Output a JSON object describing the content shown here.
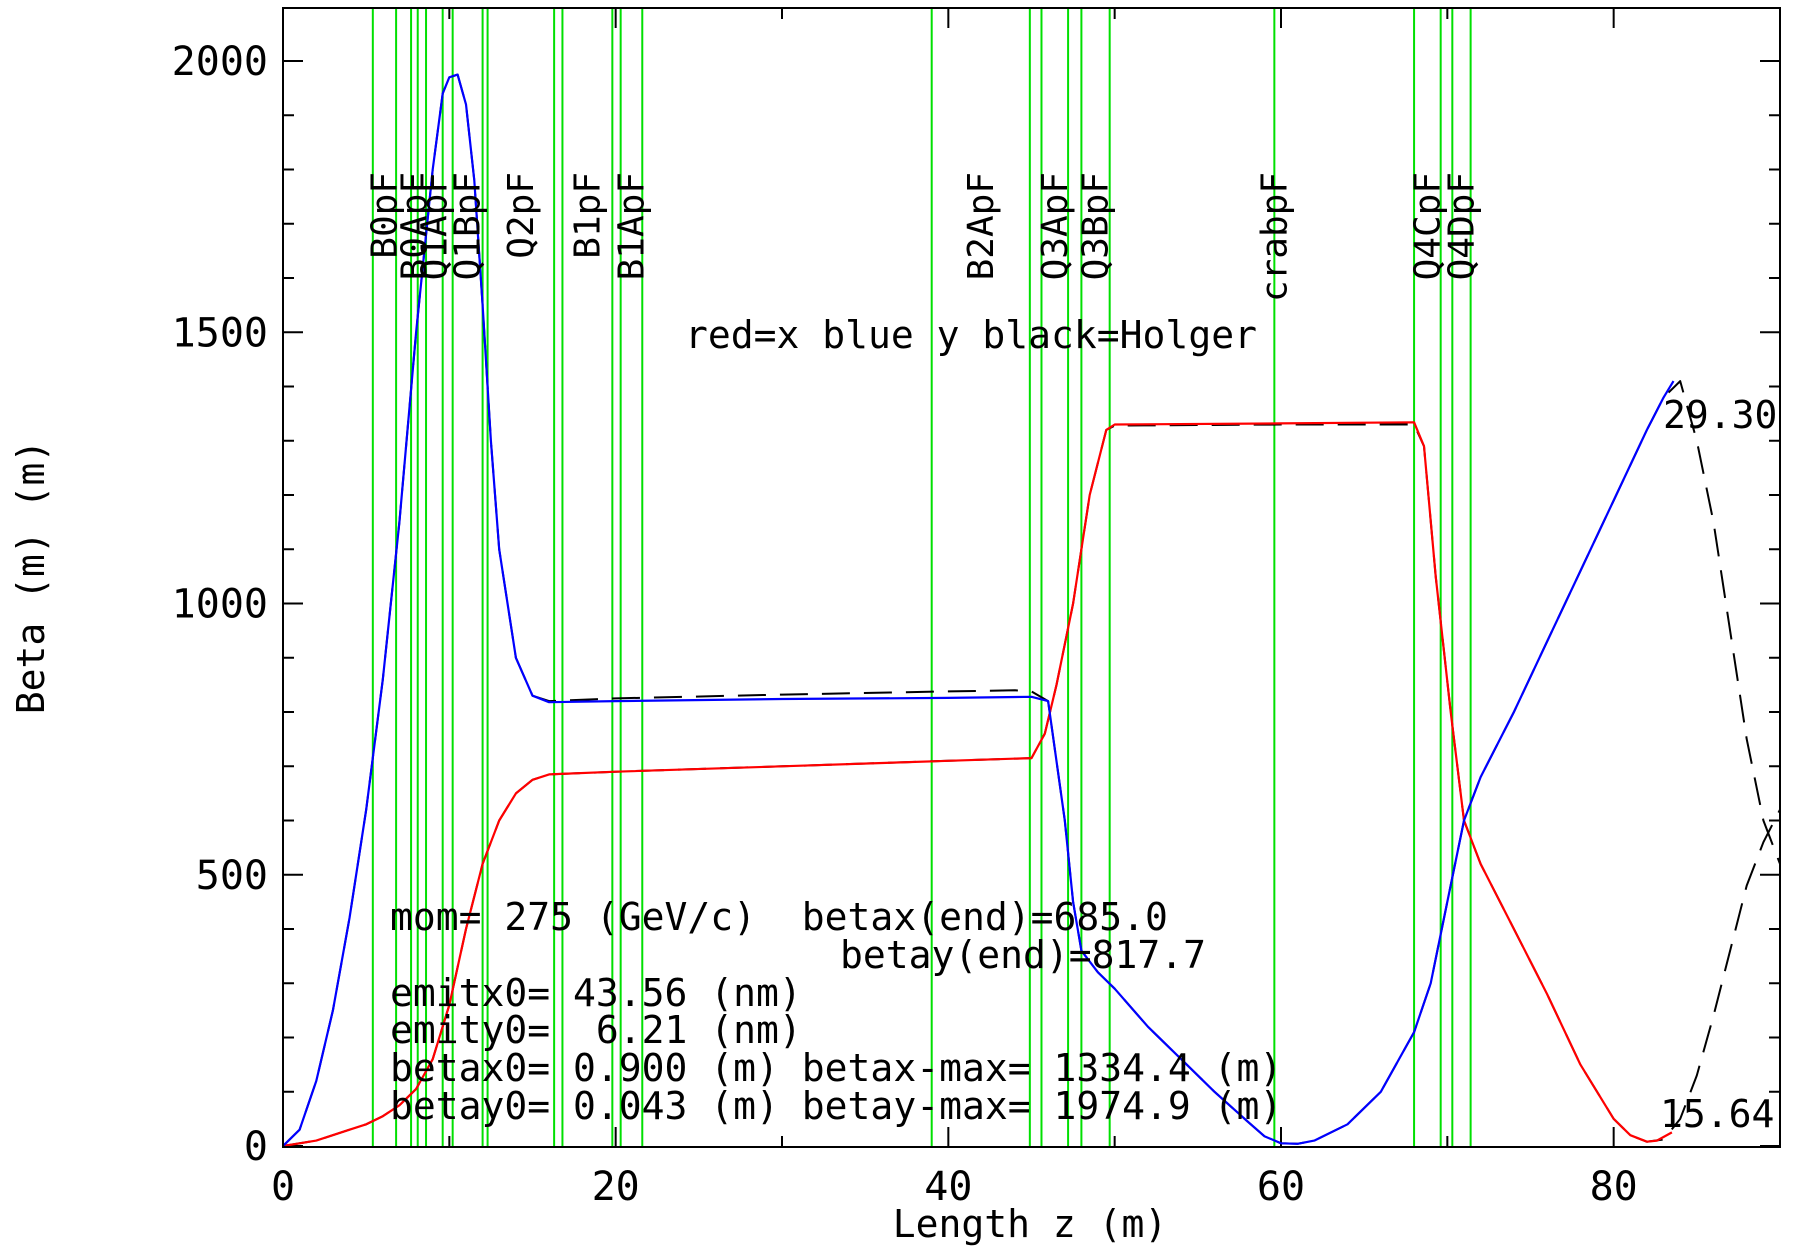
{
  "chart_data": {
    "type": "line",
    "xlabel": "Length z  (m)",
    "ylabel": "Beta (m)  (m)",
    "xlim": [
      0,
      90
    ],
    "ylim": [
      0,
      2100
    ],
    "x_ticks": [
      0,
      20,
      40,
      60,
      80
    ],
    "y_ticks": [
      0,
      500,
      1000,
      1500,
      2000
    ],
    "grid": false,
    "legend_note": "red=x blue y black=Holger",
    "series": [
      {
        "key": "betax",
        "color": "#ff0000",
        "style": "solid",
        "points": [
          [
            0,
            0
          ],
          [
            2,
            10
          ],
          [
            4,
            30
          ],
          [
            5,
            40
          ],
          [
            6,
            55
          ],
          [
            7,
            75
          ],
          [
            8,
            105
          ],
          [
            9,
            160
          ],
          [
            10,
            260
          ],
          [
            11,
            400
          ],
          [
            12,
            520
          ],
          [
            13,
            600
          ],
          [
            14,
            650
          ],
          [
            15,
            675
          ],
          [
            16,
            685
          ],
          [
            20,
            690
          ],
          [
            30,
            700
          ],
          [
            40,
            710
          ],
          [
            45,
            715
          ],
          [
            45.8,
            760
          ],
          [
            46.5,
            850
          ],
          [
            47.5,
            1000
          ],
          [
            48.5,
            1200
          ],
          [
            49.5,
            1320
          ],
          [
            50,
            1330
          ],
          [
            60,
            1332
          ],
          [
            68,
            1334
          ],
          [
            68.6,
            1290
          ],
          [
            69.3,
            1050
          ],
          [
            70.2,
            800
          ],
          [
            71,
            600
          ],
          [
            72,
            520
          ],
          [
            74,
            400
          ],
          [
            76,
            280
          ],
          [
            78,
            150
          ],
          [
            80,
            50
          ],
          [
            81,
            20
          ],
          [
            82,
            8
          ],
          [
            82.6,
            10
          ],
          [
            83.5,
            25
          ]
        ]
      },
      {
        "key": "betay",
        "color": "#0000ff",
        "style": "solid",
        "points": [
          [
            0,
            0
          ],
          [
            1,
            30
          ],
          [
            2,
            120
          ],
          [
            3,
            250
          ],
          [
            4,
            420
          ],
          [
            5,
            620
          ],
          [
            6,
            860
          ],
          [
            7,
            1150
          ],
          [
            8,
            1500
          ],
          [
            9,
            1800
          ],
          [
            9.6,
            1940
          ],
          [
            10,
            1970
          ],
          [
            10.5,
            1975
          ],
          [
            11,
            1920
          ],
          [
            11.5,
            1780
          ],
          [
            12,
            1550
          ],
          [
            12.5,
            1300
          ],
          [
            13,
            1100
          ],
          [
            14,
            900
          ],
          [
            15,
            830
          ],
          [
            16,
            818
          ],
          [
            20,
            820
          ],
          [
            30,
            824
          ],
          [
            40,
            826
          ],
          [
            45,
            828
          ],
          [
            46,
            820
          ],
          [
            47,
            600
          ],
          [
            47.5,
            450
          ],
          [
            48,
            360
          ],
          [
            49,
            320
          ],
          [
            50,
            290
          ],
          [
            52,
            220
          ],
          [
            54,
            160
          ],
          [
            56,
            100
          ],
          [
            58,
            45
          ],
          [
            59,
            18
          ],
          [
            60,
            5
          ],
          [
            61,
            4
          ],
          [
            62,
            10
          ],
          [
            64,
            40
          ],
          [
            66,
            100
          ],
          [
            68,
            210
          ],
          [
            69,
            300
          ],
          [
            70,
            450
          ],
          [
            71,
            600
          ],
          [
            72,
            680
          ],
          [
            74,
            800
          ],
          [
            76,
            930
          ],
          [
            78,
            1060
          ],
          [
            80,
            1190
          ],
          [
            82,
            1320
          ],
          [
            83,
            1380
          ],
          [
            83.6,
            1410
          ]
        ]
      },
      {
        "key": "holger_x",
        "color": "#000000",
        "style": "dashed",
        "points": [
          [
            0,
            0
          ],
          [
            2,
            10
          ],
          [
            4,
            30
          ],
          [
            5,
            40
          ],
          [
            6,
            55
          ],
          [
            7,
            75
          ],
          [
            8,
            105
          ],
          [
            9,
            160
          ],
          [
            10,
            260
          ],
          [
            11,
            400
          ],
          [
            12,
            520
          ],
          [
            13,
            600
          ],
          [
            14,
            650
          ],
          [
            15,
            675
          ],
          [
            16,
            685
          ],
          [
            20,
            690
          ],
          [
            30,
            700
          ],
          [
            40,
            710
          ],
          [
            45,
            715
          ],
          [
            45.8,
            760
          ],
          [
            46.5,
            850
          ],
          [
            47.5,
            1000
          ],
          [
            48.5,
            1200
          ],
          [
            49.5,
            1320
          ],
          [
            50,
            1328
          ],
          [
            60,
            1330
          ],
          [
            68,
            1330
          ],
          [
            68.6,
            1290
          ],
          [
            69.3,
            1050
          ],
          [
            70.2,
            800
          ],
          [
            71,
            600
          ],
          [
            72,
            520
          ],
          [
            74,
            400
          ],
          [
            76,
            280
          ],
          [
            78,
            150
          ],
          [
            80,
            50
          ],
          [
            81,
            20
          ],
          [
            82,
            8
          ],
          [
            83,
            12
          ],
          [
            84,
            50
          ],
          [
            85,
            130
          ],
          [
            86,
            240
          ],
          [
            87,
            360
          ],
          [
            88,
            480
          ],
          [
            89,
            560
          ],
          [
            90,
            620
          ]
        ]
      },
      {
        "key": "holger_y",
        "color": "#000000",
        "style": "dashed",
        "points": [
          [
            0,
            0
          ],
          [
            1,
            30
          ],
          [
            2,
            120
          ],
          [
            3,
            250
          ],
          [
            4,
            420
          ],
          [
            5,
            620
          ],
          [
            6,
            860
          ],
          [
            7,
            1150
          ],
          [
            8,
            1500
          ],
          [
            9,
            1800
          ],
          [
            9.6,
            1940
          ],
          [
            10,
            1970
          ],
          [
            10.5,
            1975
          ],
          [
            11,
            1920
          ],
          [
            11.5,
            1780
          ],
          [
            12,
            1550
          ],
          [
            12.5,
            1300
          ],
          [
            13,
            1100
          ],
          [
            14,
            900
          ],
          [
            15,
            830
          ],
          [
            16,
            820
          ],
          [
            20,
            825
          ],
          [
            30,
            832
          ],
          [
            40,
            838
          ],
          [
            44,
            840
          ],
          [
            45,
            838
          ],
          [
            46,
            820
          ],
          [
            47,
            600
          ],
          [
            47.5,
            450
          ],
          [
            48,
            360
          ],
          [
            49,
            320
          ],
          [
            50,
            290
          ],
          [
            52,
            220
          ],
          [
            54,
            160
          ],
          [
            56,
            100
          ],
          [
            58,
            45
          ],
          [
            59,
            18
          ],
          [
            60,
            5
          ],
          [
            61,
            4
          ],
          [
            62,
            10
          ],
          [
            64,
            40
          ],
          [
            66,
            100
          ],
          [
            68,
            210
          ],
          [
            69,
            300
          ],
          [
            70,
            450
          ],
          [
            71,
            600
          ],
          [
            72,
            680
          ],
          [
            74,
            800
          ],
          [
            76,
            930
          ],
          [
            78,
            1060
          ],
          [
            80,
            1190
          ],
          [
            82,
            1320
          ],
          [
            83,
            1380
          ],
          [
            84,
            1410
          ],
          [
            85,
            1300
          ],
          [
            86,
            1150
          ],
          [
            87,
            950
          ],
          [
            88,
            750
          ],
          [
            89,
            600
          ],
          [
            90,
            520
          ]
        ]
      }
    ],
    "elements": [
      {
        "name": "B0pF",
        "z": [
          5.4,
          6.8
        ]
      },
      {
        "name": "B0ApF",
        "z": [
          7.7,
          8.1
        ]
      },
      {
        "name": "Q1ApF",
        "z": [
          8.6,
          9.6
        ]
      },
      {
        "name": "Q1BpF",
        "z": [
          10.2,
          12.0
        ]
      },
      {
        "name": "Q2pF",
        "z": [
          12.3,
          16.3
        ]
      },
      {
        "name": "B1pF",
        "z": [
          16.8,
          19.8
        ]
      },
      {
        "name": "B1ApF",
        "z": [
          20.3,
          21.6
        ]
      },
      {
        "name": "B2ApF",
        "z": [
          39.0,
          44.9
        ]
      },
      {
        "name": "Q3ApF",
        "z": [
          45.6,
          47.2
        ]
      },
      {
        "name": "Q3BpF",
        "z": [
          48.0,
          49.7
        ]
      },
      {
        "name": "crabpF",
        "z": [
          59.6,
          59.6
        ]
      },
      {
        "name": "Q4CpF",
        "z": [
          68.0,
          69.6
        ]
      },
      {
        "name": "Q4DpF",
        "z": [
          70.3,
          71.4
        ]
      }
    ],
    "info": {
      "line1": "mom= 275 (GeV/c)  betax(end)=685.0",
      "line2": "betay(end)=817.7",
      "line3": "emitx0= 43.56 (nm)",
      "line4": "emity0=  6.21 (nm)",
      "line5": "betax0= 0.900 (m) betax-max= 1334.4 (m)",
      "line6": "betay0= 0.043 (m) betay-max= 1974.9 (m)"
    },
    "end_labels": {
      "blue": {
        "text": "29.30",
        "color": "#0000ff"
      },
      "red": {
        "text": "15.64",
        "color": "#ff0000"
      }
    }
  }
}
